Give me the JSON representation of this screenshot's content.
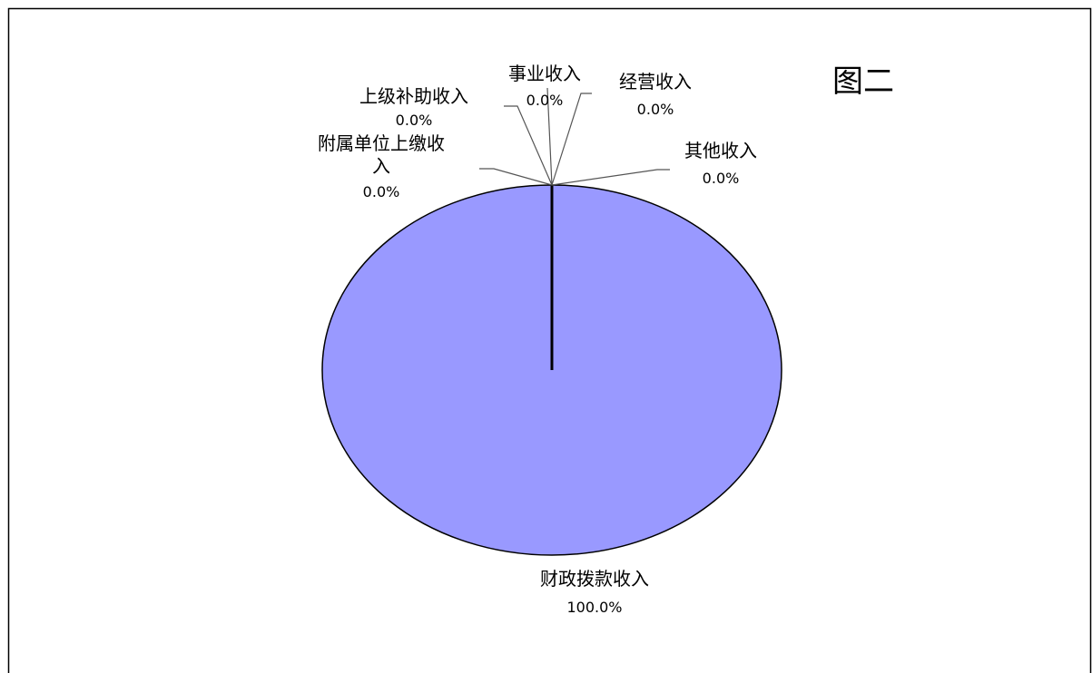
{
  "chart_data": {
    "type": "pie",
    "title": "图二",
    "slices": [
      {
        "label": "财政拨款收入",
        "value": 100.0,
        "percent_label": "100.0%"
      },
      {
        "label": "上级补助收入",
        "value": 0.0,
        "percent_label": "0.0%"
      },
      {
        "label": "事业收入",
        "value": 0.0,
        "percent_label": "0.0%"
      },
      {
        "label": "经营收入",
        "value": 0.0,
        "percent_label": "0.0%"
      },
      {
        "label": "附属单位上缴收入",
        "value": 0.0,
        "percent_label": "0.0%"
      },
      {
        "label": "其他收入",
        "value": 0.0,
        "percent_label": "0.0%"
      }
    ],
    "colors": {
      "main_slice": "#9999ff",
      "outline": "#000000",
      "leader_line": "#555555",
      "frame": "#000000"
    },
    "legend": "none"
  }
}
